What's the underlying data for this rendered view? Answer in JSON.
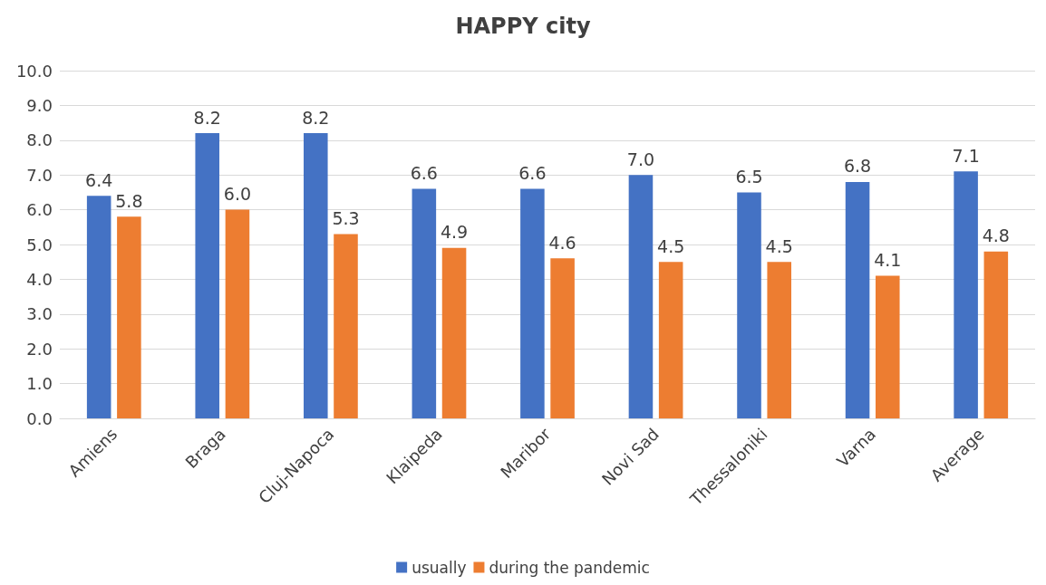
{
  "chart_data": {
    "type": "bar",
    "title": "HAPPY city",
    "categories": [
      "Amiens",
      "Braga",
      "Cluj-Napoca",
      "Klaipeda",
      "Maribor",
      "Novi Sad",
      "Thessaloniki",
      "Varna",
      "Average"
    ],
    "series": [
      {
        "name": "usually",
        "color": "#4472c4",
        "values": [
          6.4,
          8.2,
          8.2,
          6.6,
          6.6,
          7.0,
          6.5,
          6.8,
          7.1
        ],
        "value_labels": [
          "6.4",
          "8.2",
          "8.2",
          "6.6",
          "6.6",
          "7.0",
          "6.5",
          "6.8",
          "7.1"
        ]
      },
      {
        "name": "during the pandemic",
        "color": "#ed7d31",
        "values": [
          5.8,
          6.0,
          5.3,
          4.9,
          4.6,
          4.5,
          4.5,
          4.1,
          4.8
        ],
        "value_labels": [
          "5.8",
          "6.0",
          "5.3",
          "4.9",
          "4.6",
          "4.5",
          "4.5",
          "4.1",
          "4.8"
        ]
      }
    ],
    "ylim": [
      0,
      10
    ],
    "yticks": [
      {
        "value": 0,
        "label": "0.0"
      },
      {
        "value": 1,
        "label": "1.0"
      },
      {
        "value": 2,
        "label": "2.0"
      },
      {
        "value": 3,
        "label": "3.0"
      },
      {
        "value": 4,
        "label": "4.0"
      },
      {
        "value": 5,
        "label": "5.0"
      },
      {
        "value": 6,
        "label": "6.0"
      },
      {
        "value": 7,
        "label": "7.0"
      },
      {
        "value": 8,
        "label": "8.0"
      },
      {
        "value": 9,
        "label": "9.0"
      },
      {
        "value": 10,
        "label": "10.0"
      }
    ],
    "grid": "y",
    "legend": "bottom"
  }
}
